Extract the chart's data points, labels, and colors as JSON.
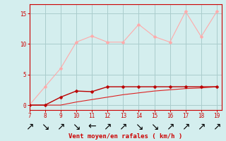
{
  "title": "",
  "xlabel": "Vent moyen/en rafales ( km/h )",
  "ylabel": "",
  "bg_color": "#d4eeee",
  "grid_color": "#aacccc",
  "xlim": [
    7,
    19.3
  ],
  "ylim": [
    -0.8,
    16.5
  ],
  "xticks": [
    7,
    8,
    9,
    10,
    11,
    12,
    13,
    14,
    15,
    16,
    17,
    18,
    19
  ],
  "yticks": [
    0,
    5,
    10,
    15
  ],
  "x": [
    7,
    8,
    9,
    10,
    11,
    12,
    13,
    14,
    15,
    16,
    17,
    18,
    19
  ],
  "line_pink_y": [
    0.0,
    3.0,
    6.0,
    10.3,
    11.3,
    10.3,
    10.3,
    13.2,
    11.2,
    10.3,
    15.3,
    11.2,
    15.3
  ],
  "line_dark_y": [
    0.0,
    0.0,
    1.3,
    2.3,
    2.2,
    3.0,
    3.0,
    3.0,
    3.0,
    3.0,
    3.0,
    3.0,
    3.0
  ],
  "line_med_y": [
    0.0,
    0.0,
    0.0,
    0.5,
    0.9,
    1.3,
    1.7,
    2.0,
    2.3,
    2.5,
    2.7,
    2.8,
    3.0
  ],
  "line_pink_color": "#ffaaaa",
  "line_dark_color": "#bb0000",
  "line_med_color": "#dd2222",
  "axis_color": "#cc0000",
  "tick_color": "#cc0000",
  "xlabel_color": "#cc0000",
  "marker_size": 2.5,
  "lw_pink": 0.8,
  "lw_dark": 1.0,
  "lw_med": 0.8
}
